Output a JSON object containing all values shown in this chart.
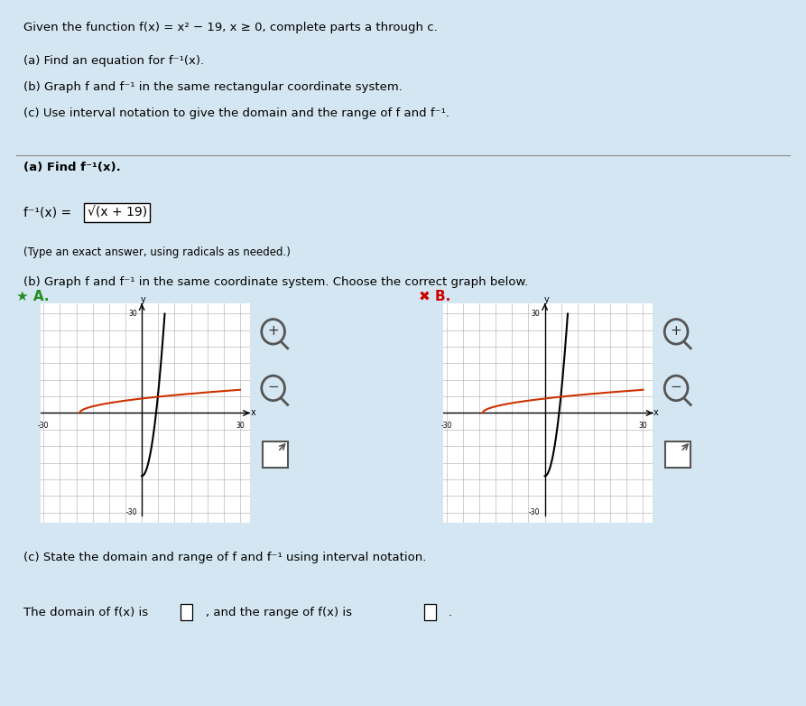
{
  "title_text": "Given the function f(x) = x² − 19, x ≥ 0, complete parts a through c.",
  "part_a_header": "(a) Find an equation for f⁻¹(x).",
  "part_b_header": "(b) Graph f and f⁻¹ in the same rectangular coordinate system.",
  "part_c_header": "(c) Use interval notation to give the domain and the range of f and f⁻¹.",
  "answer_a_label": "(a) Find f⁻¹(x).",
  "answer_a_eq_left": "f⁻¹(x) = ",
  "answer_a_eq_right": "√(x + 19)",
  "answer_a_note": "(Type an exact answer, using radicals as needed.)",
  "answer_b_label": "(b) Graph f and f⁻¹ in the same coordinate system. Choose the correct graph below.",
  "label_A": "A.",
  "label_B": "B.",
  "answer_c_label": "(c) State the domain and range of f and f⁻¹ using interval notation.",
  "answer_c_text1": "The domain of f(x) is",
  "answer_c_text2": ", and the range of f(x) is",
  "answer_c_text3": ".",
  "graph_xlim": [
    -30,
    30
  ],
  "graph_ylim": [
    -30,
    30
  ],
  "f_color": "#000000",
  "finv_color": "#cc3300",
  "bg_color": "#d4e6f1",
  "graph_bg": "#ffffff",
  "grid_color": "#aaaaaa",
  "star_A_color": "#228B22",
  "star_B_color": "#cc0000"
}
